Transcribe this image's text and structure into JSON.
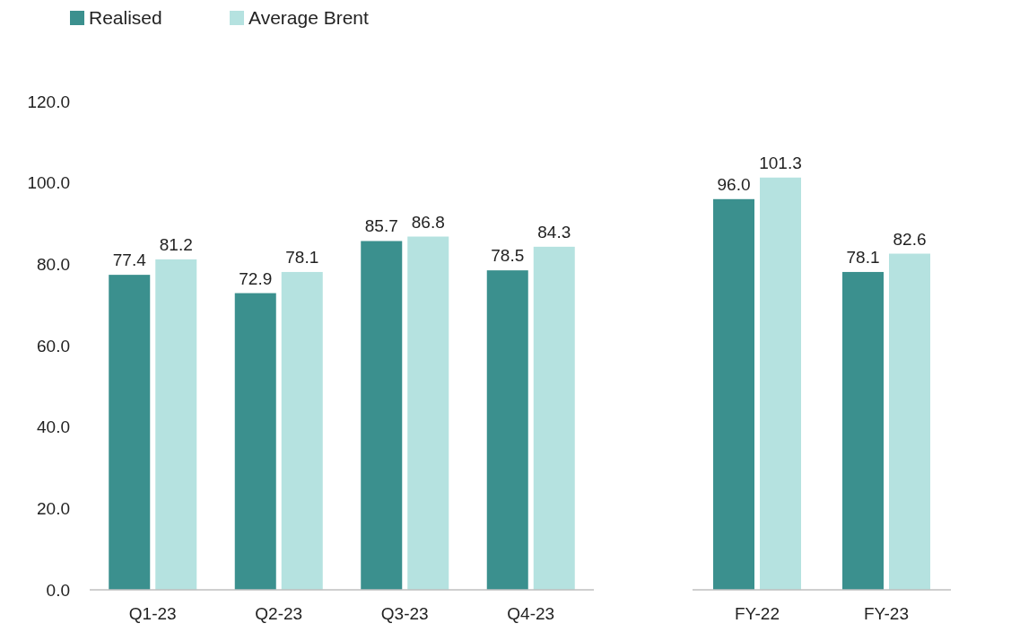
{
  "chart_data": [
    {
      "type": "bar",
      "categories": [
        "Q1-23",
        "Q2-23",
        "Q3-23",
        "Q4-23"
      ],
      "series": [
        {
          "name": "Realised",
          "color": "#3b908e",
          "values": [
            77.4,
            72.9,
            85.7,
            78.5
          ],
          "value_labels": [
            "77.4",
            "72.9",
            "85.7",
            "78.5"
          ]
        },
        {
          "name": "Average Brent",
          "color": "#b5e2e0",
          "values": [
            81.2,
            78.1,
            86.8,
            84.3
          ],
          "value_labels": [
            "81.2",
            "78.1",
            "86.8",
            "84.3"
          ]
        }
      ],
      "ylim": [
        0,
        120
      ],
      "yticks": [
        {
          "value": 0,
          "label": "0.0"
        },
        {
          "value": 20,
          "label": "20.0"
        },
        {
          "value": 40,
          "label": "40.0"
        },
        {
          "value": 60,
          "label": "60.0"
        },
        {
          "value": 80,
          "label": "80.0"
        },
        {
          "value": 100,
          "label": "100.0"
        },
        {
          "value": 120,
          "label": "120.0"
        }
      ],
      "legend": "top left",
      "grid": false
    },
    {
      "type": "bar",
      "categories": [
        "FY-22",
        "FY-23"
      ],
      "series": [
        {
          "color": "#3b908e",
          "values": [
            96.0,
            78.1
          ],
          "value_labels": [
            "96.0",
            "78.1"
          ]
        },
        {
          "color": "#b5e2e0",
          "values": [
            101.3,
            82.6
          ],
          "value_labels": [
            "101.3",
            "82.6"
          ]
        }
      ],
      "ylim": [
        0,
        120
      ],
      "tick_labels": "x",
      "grid": false
    }
  ]
}
